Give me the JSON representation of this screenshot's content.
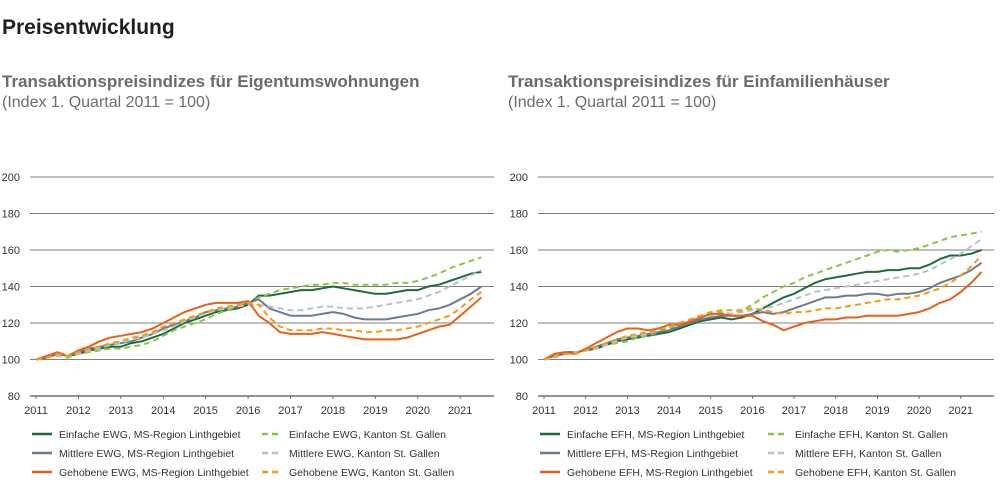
{
  "page_title": "Preisentwicklung",
  "colors": {
    "dark_green": "#1e6b3a",
    "light_green": "#8cc63f",
    "dark_gray": "#6b7c8f",
    "light_gray": "#b8c0cc",
    "orange": "#e8601c",
    "light_orange": "#f39c12",
    "grid": "#555555"
  },
  "chart_data": [
    {
      "type": "line",
      "title": "Transaktionspreisindizes für Eigentumswohnungen",
      "subtitle": "(Index 1. Quartal 2011 = 100)",
      "x_ticks": [
        "2011",
        "2012",
        "2013",
        "2014",
        "2015",
        "2016",
        "2017",
        "2018",
        "2019",
        "2020",
        "2021"
      ],
      "y_ticks": [
        80,
        100,
        120,
        140,
        160,
        180,
        200
      ],
      "ylim": [
        80,
        200
      ],
      "xlim": [
        2011.0,
        2021.75
      ],
      "grid": true,
      "legend_position": "bottom",
      "x": [
        2011.0,
        2011.25,
        2011.5,
        2011.75,
        2012.0,
        2012.25,
        2012.5,
        2012.75,
        2013.0,
        2013.25,
        2013.5,
        2013.75,
        2014.0,
        2014.25,
        2014.5,
        2014.75,
        2015.0,
        2015.25,
        2015.5,
        2015.75,
        2016.0,
        2016.25,
        2016.5,
        2016.75,
        2017.0,
        2017.25,
        2017.5,
        2017.75,
        2018.0,
        2018.25,
        2018.5,
        2018.75,
        2019.0,
        2019.25,
        2019.5,
        2019.75,
        2020.0,
        2020.25,
        2020.5,
        2020.75,
        2021.0,
        2021.25,
        2021.5
      ],
      "series": [
        {
          "name": "Einfache EWG, MS-Region Linthgebiet",
          "color_key": "dark_green",
          "dash": false,
          "values": [
            100,
            101,
            103,
            102,
            103,
            105,
            106,
            107,
            107,
            109,
            110,
            112,
            114,
            117,
            120,
            122,
            124,
            126,
            127,
            128,
            130,
            135,
            135,
            136,
            137,
            138,
            138,
            139,
            140,
            139,
            138,
            137,
            136,
            136,
            137,
            138,
            138,
            140,
            141,
            143,
            145,
            147,
            148
          ]
        },
        {
          "name": "Einfache EWG, Kanton St. Gallen",
          "color_key": "light_green",
          "dash": true,
          "values": [
            100,
            101,
            102,
            101,
            103,
            104,
            105,
            106,
            106,
            107,
            108,
            110,
            113,
            116,
            118,
            120,
            122,
            125,
            127,
            129,
            131,
            134,
            136,
            138,
            139,
            140,
            141,
            141,
            142,
            142,
            141,
            141,
            141,
            141,
            142,
            142,
            143,
            145,
            147,
            150,
            152,
            154,
            156
          ]
        },
        {
          "name": "Mittlere EWG, MS-Region Linthgebiet",
          "color_key": "dark_gray",
          "dash": false,
          "values": [
            100,
            101,
            103,
            102,
            104,
            106,
            107,
            108,
            109,
            110,
            112,
            114,
            117,
            119,
            121,
            123,
            126,
            127,
            128,
            129,
            131,
            133,
            128,
            126,
            124,
            124,
            124,
            125,
            126,
            125,
            123,
            122,
            122,
            122,
            123,
            124,
            125,
            127,
            128,
            130,
            133,
            136,
            140
          ]
        },
        {
          "name": "Mittlere EWG, Kanton St. Gallen",
          "color_key": "light_gray",
          "dash": true,
          "values": [
            100,
            101,
            102,
            102,
            103,
            105,
            106,
            108,
            109,
            111,
            112,
            114,
            116,
            118,
            121,
            123,
            125,
            127,
            128,
            129,
            130,
            130,
            129,
            128,
            127,
            127,
            128,
            129,
            129,
            128,
            128,
            128,
            129,
            130,
            131,
            132,
            133,
            135,
            137,
            140,
            143,
            146,
            149
          ]
        },
        {
          "name": "Gehobene EWG, MS-Region Linthgebiet",
          "color_key": "orange",
          "dash": false,
          "values": [
            100,
            102,
            104,
            102,
            105,
            107,
            110,
            112,
            113,
            114,
            115,
            117,
            120,
            123,
            126,
            128,
            130,
            131,
            131,
            131,
            132,
            124,
            120,
            115,
            114,
            114,
            114,
            115,
            114,
            113,
            112,
            111,
            111,
            111,
            111,
            112,
            114,
            116,
            118,
            119,
            124,
            129,
            134
          ]
        },
        {
          "name": "Gehobene EWG, Kanton St. Gallen",
          "color_key": "light_orange",
          "dash": true,
          "values": [
            100,
            101,
            103,
            102,
            104,
            106,
            107,
            109,
            110,
            112,
            113,
            115,
            118,
            120,
            122,
            124,
            126,
            128,
            129,
            130,
            131,
            130,
            123,
            118,
            116,
            116,
            116,
            117,
            117,
            116,
            116,
            115,
            115,
            116,
            116,
            117,
            118,
            120,
            122,
            124,
            128,
            133,
            137
          ]
        }
      ]
    },
    {
      "type": "line",
      "title": "Transaktionspreisindizes für Einfamilienhäuser",
      "subtitle": "(Index 1. Quartal 2011 = 100)",
      "x_ticks": [
        "2011",
        "2012",
        "2013",
        "2014",
        "2015",
        "2016",
        "2017",
        "2018",
        "2019",
        "2020",
        "2021"
      ],
      "y_ticks": [
        80,
        100,
        120,
        140,
        160,
        180,
        200
      ],
      "ylim": [
        80,
        200
      ],
      "xlim": [
        2011.0,
        2021.75
      ],
      "grid": true,
      "legend_position": "bottom",
      "x": [
        2011.0,
        2011.25,
        2011.5,
        2011.75,
        2012.0,
        2012.25,
        2012.5,
        2012.75,
        2013.0,
        2013.25,
        2013.5,
        2013.75,
        2014.0,
        2014.25,
        2014.5,
        2014.75,
        2015.0,
        2015.25,
        2015.5,
        2015.75,
        2016.0,
        2016.25,
        2016.5,
        2016.75,
        2017.0,
        2017.25,
        2017.5,
        2017.75,
        2018.0,
        2018.25,
        2018.5,
        2018.75,
        2019.0,
        2019.25,
        2019.5,
        2019.75,
        2020.0,
        2020.25,
        2020.5,
        2020.75,
        2021.0,
        2021.25,
        2021.5
      ],
      "series": [
        {
          "name": "Einfache EFH, MS-Region Linthgebiet",
          "color_key": "dark_green",
          "dash": false,
          "values": [
            100,
            103,
            104,
            104,
            105,
            106,
            108,
            110,
            111,
            112,
            113,
            114,
            115,
            117,
            119,
            121,
            122,
            123,
            122,
            123,
            125,
            128,
            131,
            134,
            136,
            139,
            142,
            144,
            145,
            146,
            147,
            148,
            148,
            149,
            149,
            150,
            150,
            152,
            155,
            157,
            157,
            158,
            160
          ]
        },
        {
          "name": "Einfache EFH, Kanton St. Gallen",
          "color_key": "light_green",
          "dash": true,
          "values": [
            100,
            102,
            103,
            104,
            105,
            107,
            108,
            109,
            110,
            112,
            113,
            115,
            117,
            119,
            121,
            123,
            125,
            126,
            125,
            127,
            130,
            134,
            137,
            140,
            142,
            145,
            147,
            149,
            151,
            153,
            155,
            157,
            159,
            160,
            159,
            160,
            161,
            163,
            165,
            167,
            168,
            169,
            170
          ]
        },
        {
          "name": "Mittlere EFH, MS-Region Linthgebiet",
          "color_key": "dark_gray",
          "dash": false,
          "values": [
            100,
            102,
            103,
            104,
            105,
            107,
            109,
            111,
            112,
            113,
            114,
            115,
            116,
            118,
            120,
            122,
            123,
            124,
            124,
            124,
            125,
            126,
            125,
            126,
            128,
            130,
            132,
            134,
            134,
            135,
            135,
            136,
            136,
            135,
            136,
            136,
            137,
            139,
            142,
            144,
            146,
            149,
            153
          ]
        },
        {
          "name": "Mittlere EFH, Kanton St. Gallen",
          "color_key": "light_gray",
          "dash": true,
          "values": [
            100,
            101,
            103,
            104,
            105,
            106,
            108,
            110,
            112,
            113,
            114,
            116,
            118,
            119,
            121,
            123,
            124,
            125,
            125,
            126,
            127,
            128,
            129,
            131,
            133,
            135,
            137,
            138,
            139,
            140,
            141,
            142,
            143,
            144,
            145,
            146,
            147,
            149,
            152,
            155,
            158,
            162,
            166
          ]
        },
        {
          "name": "Gehobene EFH, MS-Region Linthgebiet",
          "color_key": "orange",
          "dash": false,
          "values": [
            100,
            103,
            104,
            103,
            106,
            109,
            112,
            115,
            117,
            117,
            116,
            117,
            119,
            119,
            121,
            123,
            125,
            125,
            124,
            124,
            124,
            121,
            119,
            116,
            118,
            120,
            121,
            122,
            122,
            123,
            123,
            124,
            124,
            124,
            124,
            125,
            126,
            128,
            131,
            133,
            137,
            142,
            148
          ]
        },
        {
          "name": "Gehobene EFH, Kanton St. Gallen",
          "color_key": "light_orange",
          "dash": true,
          "values": [
            100,
            102,
            103,
            103,
            105,
            107,
            109,
            111,
            113,
            114,
            115,
            116,
            118,
            120,
            122,
            124,
            126,
            127,
            127,
            127,
            128,
            127,
            126,
            125,
            126,
            126,
            127,
            128,
            128,
            129,
            130,
            131,
            132,
            133,
            133,
            134,
            135,
            137,
            139,
            142,
            146,
            151,
            157
          ]
        }
      ]
    }
  ]
}
